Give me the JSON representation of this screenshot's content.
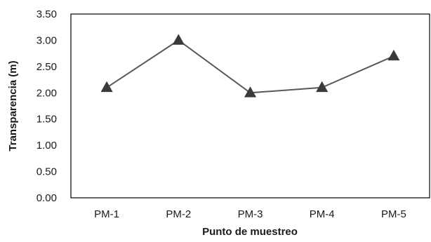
{
  "chart_data": {
    "type": "line",
    "categories": [
      "PM-1",
      "PM-2",
      "PM-3",
      "PM-4",
      "PM-5"
    ],
    "series": [
      {
        "values": [
          2.1,
          3.0,
          2.0,
          2.1,
          2.7
        ]
      }
    ],
    "xlabel": "Punto de muestreo",
    "ylabel": "Transparencia (m)",
    "ylim": [
      0,
      3.5
    ],
    "yticks": [
      "0.00",
      "0.50",
      "1.00",
      "1.50",
      "2.00",
      "2.50",
      "3.00",
      "3.50"
    ],
    "grid": false,
    "marker": "triangle",
    "line_color": "#595959",
    "marker_color": "#3a3a3a"
  }
}
